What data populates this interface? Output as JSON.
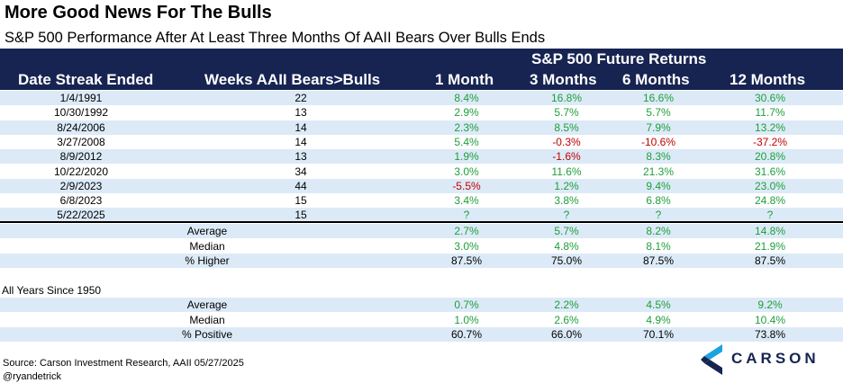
{
  "title": "More Good News For The Bulls",
  "subtitle": "S&P 500 Performance After At Least Three Months Of AAII Bears Over Bulls Ends",
  "header": {
    "super": "S&P 500 Future Returns",
    "date_col": "Date Streak Ended",
    "weeks_col": "Weeks AAII Bears>Bulls",
    "m1": "1 Month",
    "m3": "3 Months",
    "m6": "6 Months",
    "m12": "12 Months"
  },
  "rows": [
    {
      "date": "1/4/1991",
      "weeks": "22",
      "m1": "8.4%",
      "m3": "16.8%",
      "m6": "16.6%",
      "m12": "30.6%"
    },
    {
      "date": "10/30/1992",
      "weeks": "13",
      "m1": "2.9%",
      "m3": "5.7%",
      "m6": "5.7%",
      "m12": "11.7%"
    },
    {
      "date": "8/24/2006",
      "weeks": "14",
      "m1": "2.3%",
      "m3": "8.5%",
      "m6": "7.9%",
      "m12": "13.2%"
    },
    {
      "date": "3/27/2008",
      "weeks": "14",
      "m1": "5.4%",
      "m3": "-0.3%",
      "m6": "-10.6%",
      "m12": "-37.2%"
    },
    {
      "date": "8/9/2012",
      "weeks": "13",
      "m1": "1.9%",
      "m3": "-1.6%",
      "m6": "8.3%",
      "m12": "20.8%"
    },
    {
      "date": "10/22/2020",
      "weeks": "34",
      "m1": "3.0%",
      "m3": "11.6%",
      "m6": "21.3%",
      "m12": "31.6%"
    },
    {
      "date": "2/9/2023",
      "weeks": "44",
      "m1": "-5.5%",
      "m3": "1.2%",
      "m6": "9.4%",
      "m12": "23.0%"
    },
    {
      "date": "6/8/2023",
      "weeks": "15",
      "m1": "3.4%",
      "m3": "3.8%",
      "m6": "6.8%",
      "m12": "24.8%"
    },
    {
      "date": "5/22/2025",
      "weeks": "15",
      "m1": "?",
      "m3": "?",
      "m6": "?",
      "m12": "?"
    }
  ],
  "summary": [
    {
      "label": "Average",
      "m1": "2.7%",
      "m3": "5.7%",
      "m6": "8.2%",
      "m12": "14.8%"
    },
    {
      "label": "Median",
      "m1": "3.0%",
      "m3": "4.8%",
      "m6": "8.1%",
      "m12": "21.9%"
    },
    {
      "label": "% Higher",
      "m1": "87.5%",
      "m3": "75.0%",
      "m6": "87.5%",
      "m12": "87.5%"
    }
  ],
  "all_years_label": "All Years Since 1950",
  "all_years": [
    {
      "label": "Average",
      "m1": "0.7%",
      "m3": "2.2%",
      "m6": "4.5%",
      "m12": "9.2%"
    },
    {
      "label": "Median",
      "m1": "1.0%",
      "m3": "2.6%",
      "m6": "4.9%",
      "m12": "10.4%"
    },
    {
      "label": "% Positive",
      "m1": "60.7%",
      "m3": "66.0%",
      "m6": "70.1%",
      "m12": "73.8%"
    }
  ],
  "footer": {
    "source": "Source: Carson Investment Research, AAII 05/27/2025",
    "handle": "@ryandetrick"
  },
  "logo": {
    "text": "CARSON",
    "icon": "carson-chevron-icon"
  },
  "colors": {
    "header_bg": "#172452",
    "shade": "#dceaf7",
    "positive": "#1f9e3a",
    "negative": "#c00000"
  }
}
